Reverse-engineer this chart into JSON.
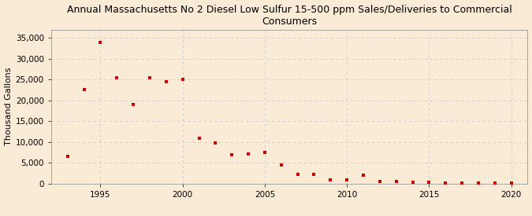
{
  "title": "Annual Massachusetts No 2 Diesel Low Sulfur 15-500 ppm Sales/Deliveries to Commercial\nConsumers",
  "ylabel": "Thousand Gallons",
  "background_color": "#faebd7",
  "marker_color": "#cc0000",
  "years": [
    1993,
    1994,
    1995,
    1996,
    1997,
    1998,
    1999,
    2000,
    2001,
    2002,
    2003,
    2004,
    2005,
    2006,
    2007,
    2008,
    2009,
    2010,
    2011,
    2012,
    2013,
    2014,
    2015,
    2016,
    2017,
    2018,
    2019,
    2020
  ],
  "values": [
    6500,
    22500,
    33800,
    25500,
    19000,
    25500,
    24500,
    25000,
    11000,
    9700,
    7000,
    7200,
    7500,
    4500,
    2200,
    2200,
    1000,
    1000,
    2000,
    500,
    500,
    400,
    300,
    200,
    200,
    150,
    150,
    250
  ],
  "xlim": [
    1992,
    2021
  ],
  "ylim": [
    0,
    37000
  ],
  "yticks": [
    0,
    5000,
    10000,
    15000,
    20000,
    25000,
    30000,
    35000
  ],
  "xticks": [
    1995,
    2000,
    2005,
    2010,
    2015,
    2020
  ],
  "grid_color": "#cccccc",
  "title_fontsize": 9,
  "axis_fontsize": 8,
  "tick_fontsize": 7.5,
  "source_fontsize": 7,
  "marker_size": 12
}
